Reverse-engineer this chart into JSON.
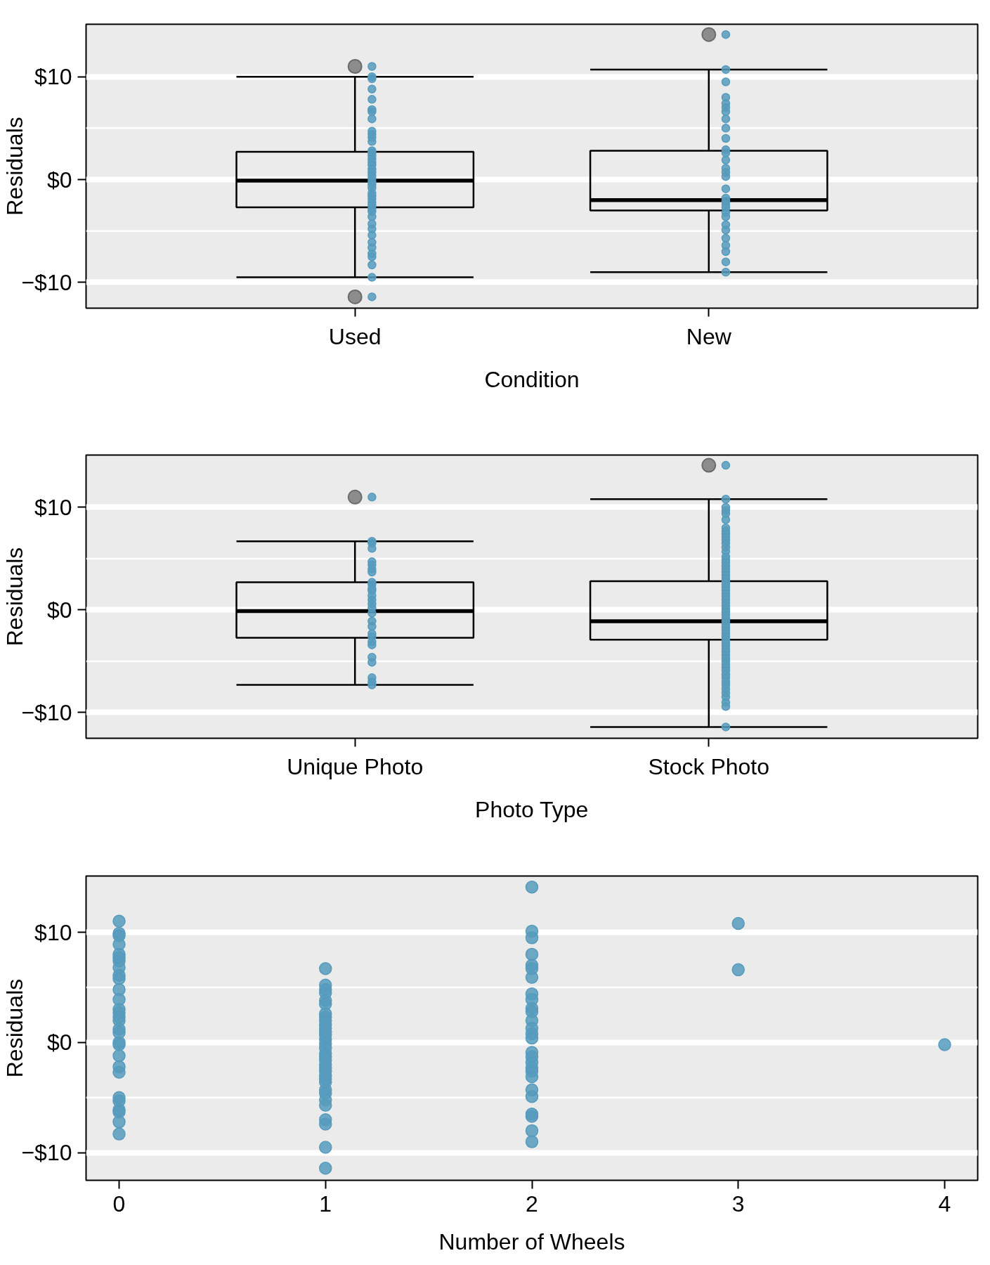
{
  "chart_data": [
    {
      "type": "box",
      "xlabel": "Condition",
      "ylabel": "Residuals",
      "categories": [
        "Used",
        "New"
      ],
      "ylim": [
        -12.5,
        15.1
      ],
      "yticks": [
        {
          "value": -10,
          "label": "−$10"
        },
        {
          "value": 0,
          "label": "$0"
        },
        {
          "value": 10,
          "label": "$10"
        }
      ],
      "grid": "y",
      "marker": "circle",
      "ref_lines": [
        {
          "axis": "y",
          "value": 5,
          "color": "#ffffff"
        },
        {
          "axis": "y",
          "value": -5,
          "color": "#ffffff"
        }
      ],
      "series": [
        {
          "type": "box",
          "color": "#000000",
          "boxes": [
            {
              "low": -9.5,
              "q1": -2.7,
              "median": -0.1,
              "q3": 2.7,
              "high": 10.0,
              "outliers": [
                11.0,
                -11.4
              ]
            },
            {
              "low": -9.0,
              "q1": -3.0,
              "median": -2.0,
              "q3": 2.8,
              "high": 10.7,
              "outliers": [
                14.1
              ]
            }
          ]
        },
        {
          "type": "scatter",
          "color": "#569bbd",
          "x": [
            "Used",
            "Used",
            "Used",
            "Used",
            "Used",
            "Used",
            "Used",
            "Used",
            "Used",
            "Used",
            "Used",
            "Used",
            "Used",
            "Used",
            "Used",
            "Used",
            "Used",
            "Used",
            "Used",
            "Used",
            "Used",
            "Used",
            "Used",
            "Used",
            "Used",
            "Used",
            "Used",
            "Used",
            "Used",
            "Used",
            "Used",
            "Used",
            "Used",
            "Used",
            "Used",
            "Used",
            "Used",
            "Used",
            "Used",
            "Used",
            "Used",
            "Used",
            "Used",
            "New",
            "New",
            "New",
            "New",
            "New",
            "New",
            "New",
            "New",
            "New",
            "New",
            "New",
            "New",
            "New",
            "New",
            "New",
            "New",
            "New",
            "New",
            "New",
            "New",
            "New",
            "New",
            "New",
            "New",
            "New",
            "New",
            "New",
            "New",
            "New",
            "New"
          ],
          "values": [
            11.0,
            10.0,
            9.8,
            8.8,
            7.8,
            6.8,
            6.6,
            5.9,
            4.7,
            4.4,
            4.1,
            3.7,
            2.8,
            2.6,
            2.3,
            2.0,
            1.7,
            1.4,
            1.0,
            0.7,
            0.4,
            0.1,
            -0.2,
            -0.5,
            -0.8,
            -1.3,
            -1.6,
            -1.9,
            -2.2,
            -2.5,
            -2.8,
            -3.1,
            -3.6,
            -4.3,
            -4.8,
            -5.4,
            -6.1,
            -6.6,
            -7.2,
            -7.5,
            -8.3,
            -9.5,
            -11.4,
            14.1,
            10.7,
            9.5,
            8.0,
            7.4,
            7.0,
            6.6,
            5.9,
            5.0,
            4.0,
            2.9,
            2.6,
            1.9,
            1.1,
            0.7,
            0.3,
            -0.9,
            -1.8,
            -2.1,
            -2.4,
            -2.7,
            -3.2,
            -3.6,
            -4.4,
            -4.9,
            -5.7,
            -6.4,
            -7.0,
            -8.0,
            -9.0
          ]
        }
      ]
    },
    {
      "type": "box",
      "xlabel": "Photo Type",
      "ylabel": "Residuals",
      "categories": [
        "Unique Photo",
        "Stock Photo"
      ],
      "ylim": [
        -12.5,
        15.1
      ],
      "yticks": [
        {
          "value": -10,
          "label": "−$10"
        },
        {
          "value": 0,
          "label": "$0"
        },
        {
          "value": 10,
          "label": "$10"
        }
      ],
      "grid": "y",
      "marker": "circle",
      "ref_lines": [
        {
          "axis": "y",
          "value": 5,
          "color": "#ffffff"
        },
        {
          "axis": "y",
          "value": -5,
          "color": "#ffffff"
        }
      ],
      "series": [
        {
          "type": "box",
          "color": "#000000",
          "boxes": [
            {
              "low": -7.3,
              "q1": -2.7,
              "median": -0.1,
              "q3": 2.7,
              "high": 6.7,
              "outliers": [
                11.0
              ]
            },
            {
              "low": -11.4,
              "q1": -2.9,
              "median": -1.1,
              "q3": 2.8,
              "high": 10.8,
              "outliers": [
                14.1
              ]
            }
          ]
        },
        {
          "type": "scatter",
          "color": "#569bbd",
          "x": [
            "Unique Photo",
            "Unique Photo",
            "Unique Photo",
            "Unique Photo",
            "Unique Photo",
            "Unique Photo",
            "Unique Photo",
            "Unique Photo",
            "Unique Photo",
            "Unique Photo",
            "Unique Photo",
            "Unique Photo",
            "Unique Photo",
            "Unique Photo",
            "Unique Photo",
            "Unique Photo",
            "Unique Photo",
            "Unique Photo",
            "Unique Photo",
            "Unique Photo",
            "Unique Photo",
            "Unique Photo",
            "Unique Photo",
            "Unique Photo",
            "Unique Photo",
            "Unique Photo",
            "Unique Photo",
            "Unique Photo",
            "Stock Photo",
            "Stock Photo",
            "Stock Photo",
            "Stock Photo",
            "Stock Photo",
            "Stock Photo",
            "Stock Photo",
            "Stock Photo",
            "Stock Photo",
            "Stock Photo",
            "Stock Photo",
            "Stock Photo",
            "Stock Photo",
            "Stock Photo",
            "Stock Photo",
            "Stock Photo",
            "Stock Photo",
            "Stock Photo",
            "Stock Photo",
            "Stock Photo",
            "Stock Photo",
            "Stock Photo",
            "Stock Photo",
            "Stock Photo",
            "Stock Photo",
            "Stock Photo",
            "Stock Photo",
            "Stock Photo",
            "Stock Photo",
            "Stock Photo",
            "Stock Photo",
            "Stock Photo",
            "Stock Photo",
            "Stock Photo",
            "Stock Photo",
            "Stock Photo",
            "Stock Photo",
            "Stock Photo",
            "Stock Photo",
            "Stock Photo",
            "Stock Photo",
            "Stock Photo",
            "Stock Photo",
            "Stock Photo",
            "Stock Photo",
            "Stock Photo",
            "Stock Photo",
            "Stock Photo",
            "Stock Photo",
            "Stock Photo",
            "Stock Photo",
            "Stock Photo",
            "Stock Photo",
            "Stock Photo",
            "Stock Photo",
            "Stock Photo",
            "Stock Photo",
            "Stock Photo",
            "Stock Photo",
            "Stock Photo",
            "Stock Photo",
            "Stock Photo"
          ],
          "values": [
            11.0,
            6.7,
            6.5,
            6.0,
            4.7,
            4.4,
            4.0,
            3.7,
            2.7,
            2.5,
            2.1,
            1.9,
            1.4,
            1.0,
            0.6,
            0.2,
            -0.3,
            -1.1,
            -1.6,
            -2.3,
            -2.6,
            -3.1,
            -3.4,
            -4.6,
            -5.1,
            -6.6,
            -7.0,
            -7.3,
            14.1,
            10.8,
            10.0,
            9.7,
            9.4,
            8.8,
            8.0,
            7.7,
            7.4,
            7.1,
            6.8,
            6.5,
            6.1,
            5.7,
            5.2,
            4.9,
            4.6,
            4.3,
            4.0,
            3.7,
            3.4,
            3.1,
            2.8,
            2.5,
            2.2,
            1.9,
            1.6,
            1.3,
            1.0,
            0.7,
            0.4,
            0.1,
            -0.2,
            -0.5,
            -0.8,
            -1.1,
            -1.4,
            -1.7,
            -2.0,
            -2.3,
            -2.6,
            -2.9,
            -3.2,
            -3.5,
            -3.8,
            -4.1,
            -4.4,
            -4.7,
            -5.0,
            -5.3,
            -5.6,
            -5.9,
            -6.3,
            -6.6,
            -7.0,
            -7.3,
            -7.7,
            -8.1,
            -8.5,
            -9.0,
            -9.4,
            -11.4
          ]
        }
      ]
    },
    {
      "type": "scatter",
      "xlabel": "Number of Wheels",
      "ylabel": "Residuals",
      "xlim": [
        -0.16,
        4.16
      ],
      "xticks": [
        0,
        1,
        2,
        3,
        4
      ],
      "ylim": [
        -12.5,
        15.1
      ],
      "yticks": [
        {
          "value": -10,
          "label": "−$10"
        },
        {
          "value": 0,
          "label": "$0"
        },
        {
          "value": 10,
          "label": "$10"
        }
      ],
      "grid": "y",
      "marker": "circle",
      "ref_lines": [
        {
          "axis": "y",
          "value": 5,
          "color": "#ffffff"
        },
        {
          "axis": "y",
          "value": -5,
          "color": "#ffffff"
        }
      ],
      "series": [
        {
          "color": "#569bbd",
          "x": [
            0,
            0,
            0,
            0,
            0,
            0,
            0,
            0,
            0,
            0,
            0,
            0,
            0,
            0,
            0,
            0,
            0,
            0,
            0,
            0,
            0,
            0,
            0,
            0,
            0,
            0,
            0,
            0,
            0,
            1,
            1,
            1,
            1,
            1,
            1,
            1,
            1,
            1,
            1,
            1,
            1,
            1,
            1,
            1,
            1,
            1,
            1,
            1,
            1,
            1,
            1,
            1,
            1,
            1,
            1,
            1,
            1,
            1,
            1,
            1,
            1,
            1,
            2,
            2,
            2,
            2,
            2,
            2,
            2,
            2,
            2,
            2,
            2,
            2,
            2,
            2,
            2,
            2,
            2,
            2,
            2,
            2,
            2,
            2,
            2,
            2,
            2,
            2,
            2,
            3,
            3,
            4
          ],
          "values": [
            11.0,
            9.9,
            9.7,
            8.9,
            8.0,
            7.7,
            7.4,
            6.8,
            6.1,
            5.8,
            4.8,
            3.9,
            3.0,
            2.7,
            2.3,
            2.0,
            1.2,
            0.9,
            0.0,
            -0.2,
            -1.2,
            -2.2,
            -2.7,
            -5.0,
            -5.3,
            -6.1,
            -6.3,
            -7.2,
            -8.3,
            6.7,
            5.2,
            4.8,
            4.5,
            3.8,
            3.5,
            2.6,
            2.3,
            2.0,
            1.6,
            1.3,
            1.0,
            0.7,
            0.3,
            -0.1,
            -0.5,
            -1.0,
            -1.3,
            -1.6,
            -2.0,
            -2.3,
            -2.6,
            -3.0,
            -3.3,
            -3.6,
            -4.3,
            -4.6,
            -5.2,
            -5.7,
            -7.0,
            -7.4,
            -9.5,
            -11.4,
            14.1,
            10.1,
            9.5,
            8.0,
            7.0,
            6.7,
            5.9,
            4.4,
            3.9,
            3.1,
            2.8,
            2.0,
            1.3,
            0.8,
            0.4,
            -0.9,
            -1.3,
            -1.8,
            -2.3,
            -2.6,
            -3.1,
            -4.3,
            -4.9,
            -6.5,
            -6.7,
            -8.0,
            -9.0,
            10.8,
            6.6,
            -0.2
          ]
        }
      ]
    }
  ]
}
